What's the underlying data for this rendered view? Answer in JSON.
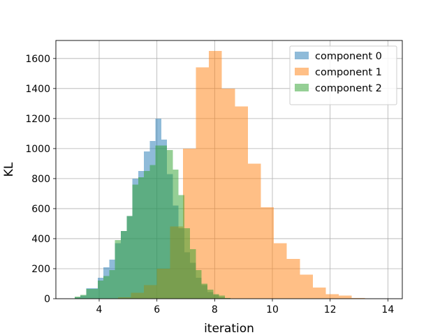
{
  "chart_data": {
    "type": "histogram",
    "xlabel": "iteration",
    "ylabel": "KL",
    "xlim": [
      2.5,
      14.5
    ],
    "ylim": [
      0,
      1720
    ],
    "xticks": [
      "4",
      "6",
      "8",
      "10",
      "12",
      "14"
    ],
    "xtick_values": [
      4,
      6,
      8,
      10,
      12,
      14
    ],
    "yticks": [
      "0",
      "200",
      "400",
      "600",
      "800",
      "1000",
      "1200",
      "1400",
      "1600"
    ],
    "ytick_values": [
      0,
      200,
      400,
      600,
      800,
      1000,
      1200,
      1400,
      1600
    ],
    "grid": true,
    "legend_position": "top-right",
    "alpha": 0.5,
    "series": [
      {
        "name": "component 0",
        "color": "#1f77b4",
        "bin_start": 3.15,
        "bin_width": 0.2,
        "values": [
          10,
          20,
          70,
          70,
          140,
          210,
          260,
          370,
          450,
          550,
          800,
          850,
          980,
          1050,
          1200,
          1060,
          830,
          620,
          470,
          310,
          240,
          140,
          90,
          45,
          25,
          10,
          5
        ]
      },
      {
        "name": "component 1",
        "color": "#ff7f0e",
        "bin_start": 4.65,
        "bin_width": 0.45,
        "values": [
          10,
          40,
          90,
          200,
          480,
          1000,
          1540,
          1650,
          1400,
          1280,
          900,
          610,
          370,
          265,
          160,
          75,
          30,
          20,
          5
        ]
      },
      {
        "name": "component 2",
        "color": "#2ca02c",
        "bin_start": 3.15,
        "bin_width": 0.2,
        "values": [
          15,
          25,
          65,
          65,
          120,
          150,
          190,
          390,
          450,
          550,
          760,
          810,
          850,
          890,
          1020,
          1020,
          990,
          860,
          690,
          470,
          330,
          190,
          100,
          60,
          30,
          20,
          5
        ]
      }
    ]
  }
}
